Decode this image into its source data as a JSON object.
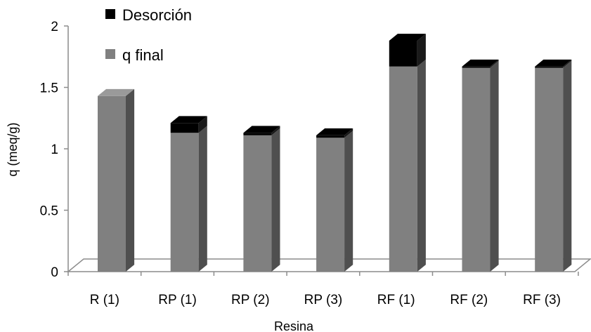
{
  "chart_data": {
    "type": "bar",
    "stacked": true,
    "three_d": true,
    "title": "",
    "xlabel": "Resina",
    "ylabel": "q (meq/g)",
    "ylim": [
      0,
      2
    ],
    "yticks": [
      "0",
      "0.5",
      "1",
      "1.5",
      "2"
    ],
    "categories": [
      "R (1)",
      "RP (1)",
      "RP (2)",
      "RP (3)",
      "RF (1)",
      "RF (2)",
      "RF (3)"
    ],
    "series": [
      {
        "name": "q final",
        "color": "#808080",
        "values": [
          1.43,
          1.13,
          1.11,
          1.09,
          1.67,
          1.66,
          1.66
        ]
      },
      {
        "name": "Desorción",
        "color": "#000000",
        "values": [
          0.0,
          0.08,
          0.02,
          0.02,
          0.21,
          0.01,
          0.01
        ]
      }
    ],
    "legend": {
      "position": "top-left",
      "order": [
        "Desorción",
        "q final"
      ]
    },
    "grid": false
  }
}
